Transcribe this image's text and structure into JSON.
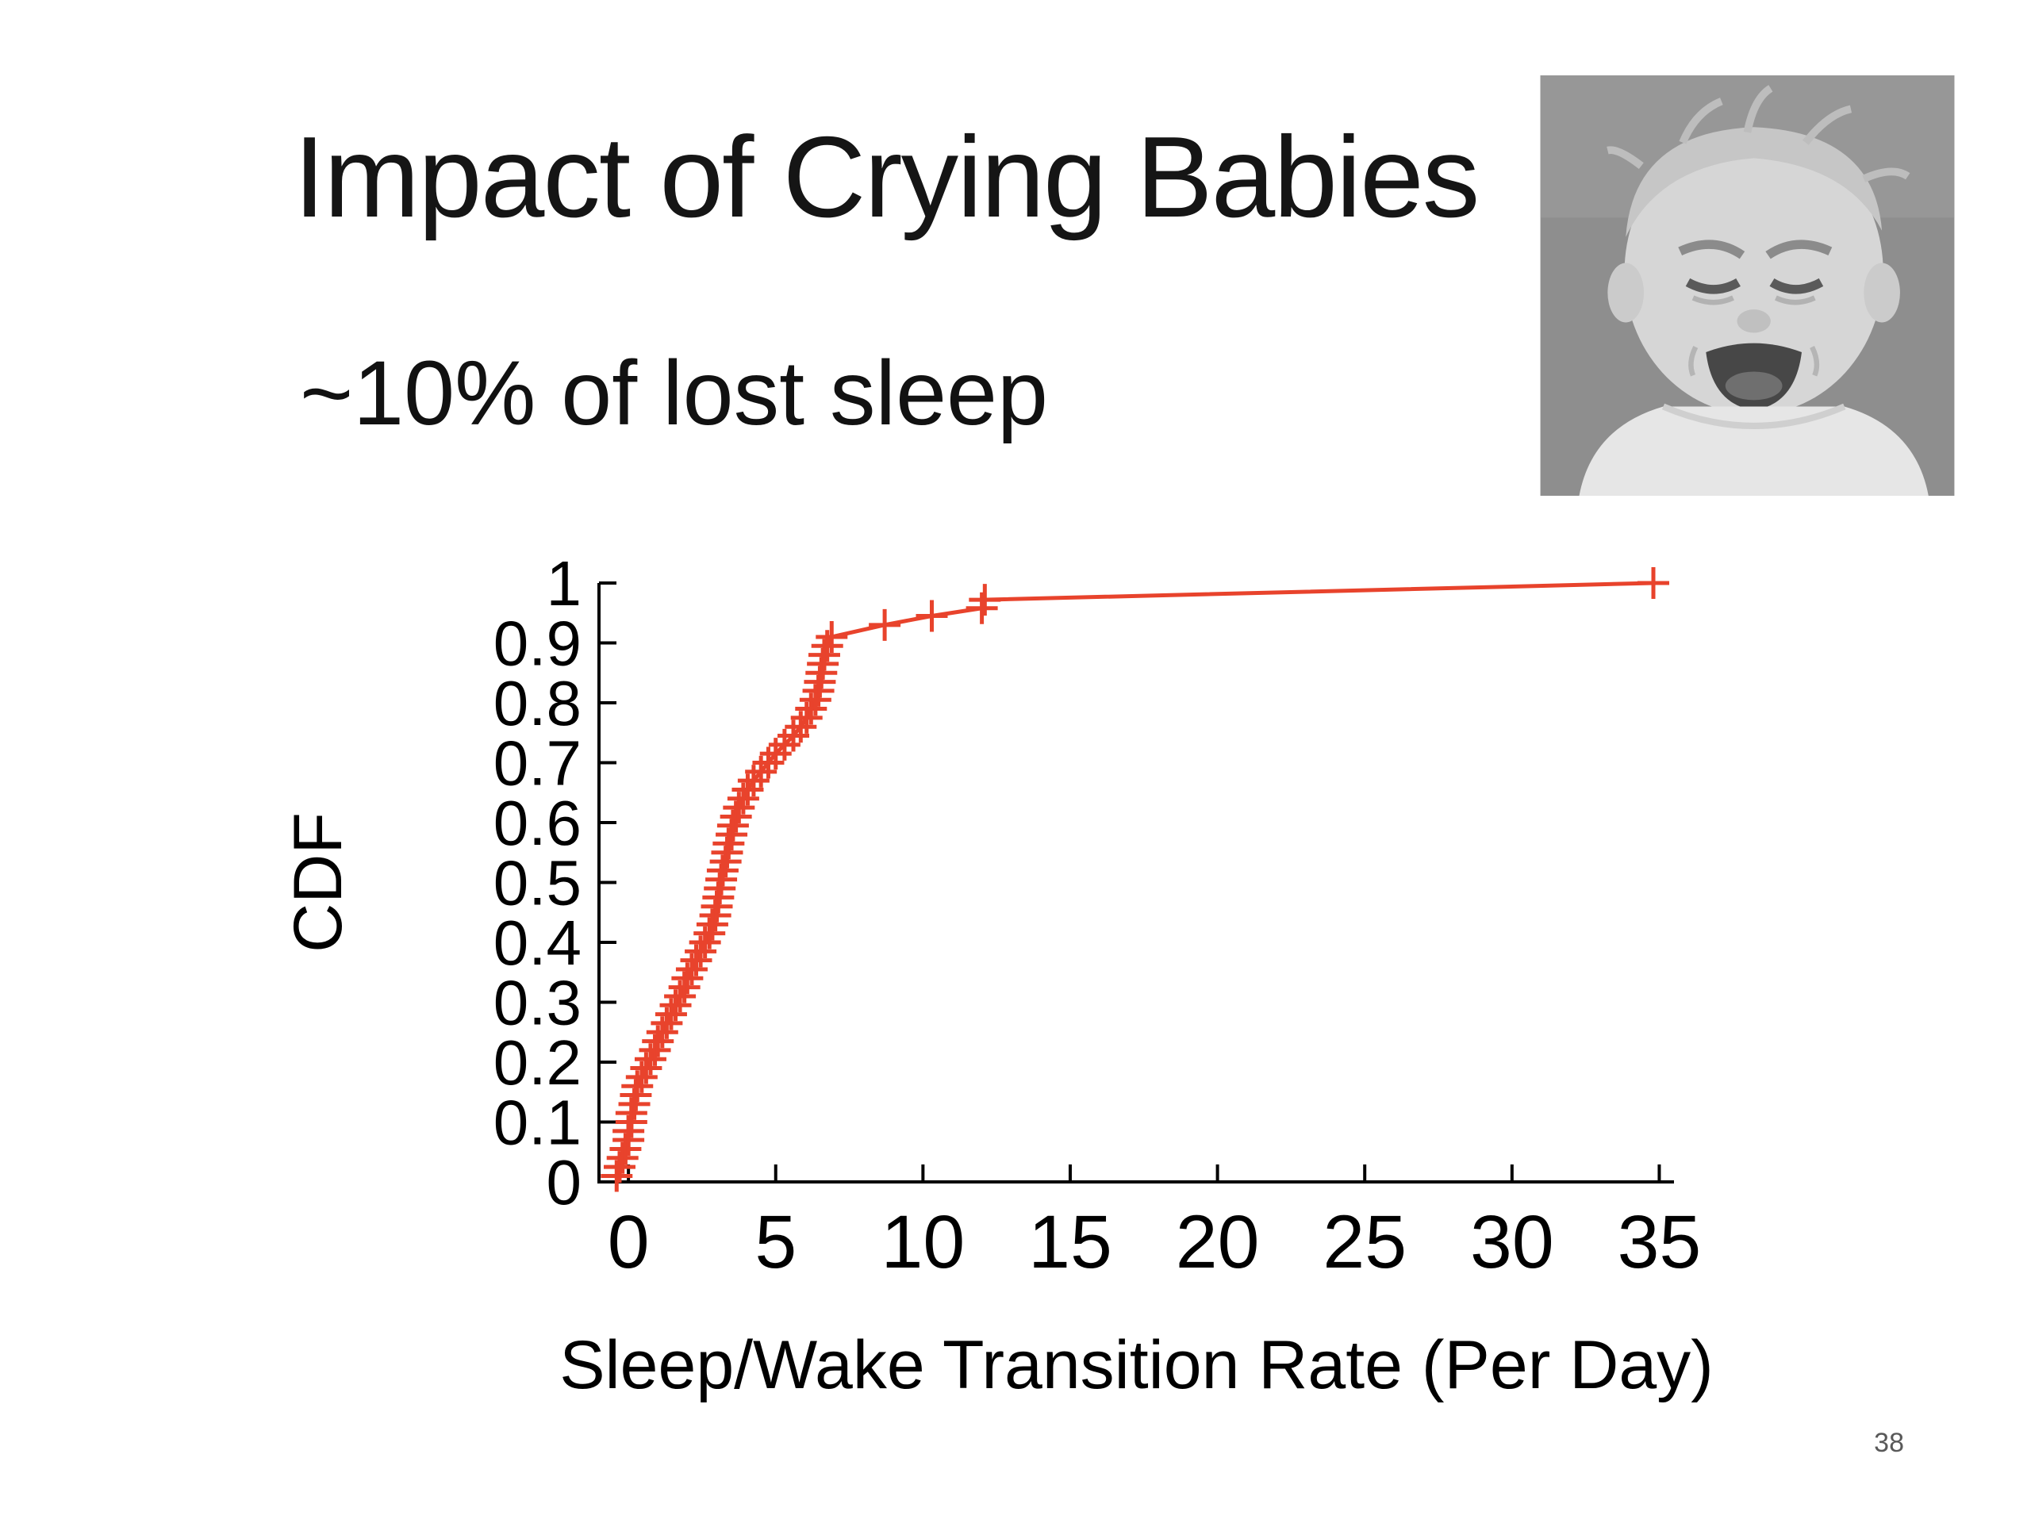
{
  "slide": {
    "title": "Impact of Crying Babies",
    "subtitle": "~10% of lost sleep",
    "page_number": "38"
  },
  "image": {
    "alt": "black and white photo of a crying baby"
  },
  "chart_data": {
    "type": "line",
    "title": "",
    "xlabel": "Sleep/Wake Transition Rate (Per Day)",
    "ylabel": "CDF",
    "xlim": [
      -1,
      35.5
    ],
    "ylim": [
      0,
      1
    ],
    "x_ticks": [
      0,
      5,
      10,
      15,
      20,
      25,
      30,
      35
    ],
    "y_ticks": [
      0,
      0.1,
      0.2,
      0.3,
      0.4,
      0.5,
      0.6,
      0.7,
      0.8,
      0.9,
      1
    ],
    "grid": false,
    "legend": false,
    "marker": "plus",
    "line_color": "#e8432c",
    "series": [
      {
        "name": "CDF of sleep/wake transition rate",
        "color": "#e8432c",
        "points": [
          [
            -0.4,
            0.01
          ],
          [
            -0.3,
            0.025
          ],
          [
            -0.2,
            0.04
          ],
          [
            -0.1,
            0.055
          ],
          [
            0,
            0.07
          ],
          [
            0,
            0.085
          ],
          [
            0.1,
            0.1
          ],
          [
            0.1,
            0.115
          ],
          [
            0.2,
            0.13
          ],
          [
            0.25,
            0.145
          ],
          [
            0.3,
            0.16
          ],
          [
            0.45,
            0.175
          ],
          [
            0.6,
            0.19
          ],
          [
            0.75,
            0.205
          ],
          [
            0.9,
            0.22
          ],
          [
            1.0,
            0.235
          ],
          [
            1.15,
            0.25
          ],
          [
            1.3,
            0.265
          ],
          [
            1.45,
            0.28
          ],
          [
            1.6,
            0.295
          ],
          [
            1.75,
            0.31
          ],
          [
            1.9,
            0.325
          ],
          [
            2.0,
            0.34
          ],
          [
            2.15,
            0.355
          ],
          [
            2.3,
            0.37
          ],
          [
            2.45,
            0.385
          ],
          [
            2.6,
            0.4
          ],
          [
            2.75,
            0.415
          ],
          [
            2.85,
            0.43
          ],
          [
            2.95,
            0.445
          ],
          [
            3.0,
            0.46
          ],
          [
            3.05,
            0.475
          ],
          [
            3.1,
            0.49
          ],
          [
            3.15,
            0.505
          ],
          [
            3.2,
            0.52
          ],
          [
            3.3,
            0.535
          ],
          [
            3.35,
            0.55
          ],
          [
            3.4,
            0.565
          ],
          [
            3.5,
            0.58
          ],
          [
            3.55,
            0.595
          ],
          [
            3.65,
            0.61
          ],
          [
            3.75,
            0.625
          ],
          [
            3.9,
            0.64
          ],
          [
            4.05,
            0.655
          ],
          [
            4.25,
            0.67
          ],
          [
            4.5,
            0.685
          ],
          [
            4.75,
            0.7
          ],
          [
            5.0,
            0.715
          ],
          [
            5.3,
            0.73
          ],
          [
            5.6,
            0.745
          ],
          [
            5.85,
            0.76
          ],
          [
            6.05,
            0.775
          ],
          [
            6.2,
            0.79
          ],
          [
            6.35,
            0.805
          ],
          [
            6.45,
            0.82
          ],
          [
            6.5,
            0.835
          ],
          [
            6.55,
            0.85
          ],
          [
            6.6,
            0.865
          ],
          [
            6.65,
            0.88
          ],
          [
            6.75,
            0.895
          ],
          [
            6.9,
            0.91
          ],
          [
            8.7,
            0.93
          ],
          [
            10.3,
            0.945
          ],
          [
            12.0,
            0.958
          ],
          [
            12.1,
            0.972
          ],
          [
            34.8,
            1.0
          ]
        ]
      }
    ]
  }
}
